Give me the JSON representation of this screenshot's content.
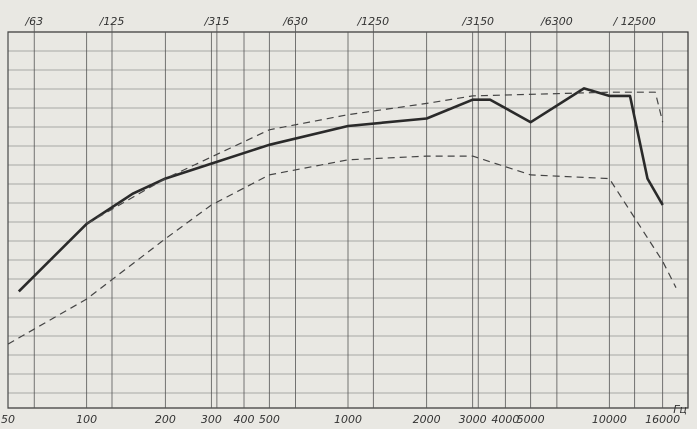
{
  "chart_data": {
    "type": "line",
    "log_x": true,
    "grid": true,
    "xlabel": "Гц",
    "xlim": [
      50,
      20000
    ],
    "ylim": [
      0,
      100
    ],
    "xticks": [
      50,
      100,
      200,
      300,
      400,
      500,
      1000,
      2000,
      3000,
      4000,
      5000,
      10000,
      16000
    ],
    "x2ticks": [
      {
        "value": 63,
        "label": "/63"
      },
      {
        "value": 125,
        "label": "/125"
      },
      {
        "value": 315,
        "label": "/315"
      },
      {
        "value": 630,
        "label": "/630"
      },
      {
        "value": 1250,
        "label": "/1250"
      },
      {
        "value": 3150,
        "label": "/3150"
      },
      {
        "value": 6300,
        "label": "/6300"
      },
      {
        "value": 12500,
        "label": "/ 12500"
      }
    ],
    "series": [
      {
        "color": "#2a2a2a",
        "dash": false,
        "x": [
          55,
          100,
          150,
          200,
          300,
          500,
          1000,
          2000,
          3000,
          3500,
          5000,
          8000,
          10000,
          12000,
          14000,
          16000
        ],
        "values": [
          31,
          49,
          57,
          61,
          65,
          70,
          75,
          77,
          82,
          82,
          76,
          85,
          83,
          83,
          61,
          54
        ]
      },
      {
        "color": "#444444",
        "dash": true,
        "x": [
          100,
          200,
          500,
          1000,
          2000,
          3000,
          10000,
          15000,
          16000
        ],
        "values": [
          49,
          61,
          74,
          78,
          81,
          83,
          84,
          84,
          76
        ]
      },
      {
        "color": "#444444",
        "dash": true,
        "x": [
          50,
          100,
          200,
          300,
          500,
          1000,
          2000,
          3000,
          5000,
          10000,
          16000,
          18000
        ],
        "values": [
          17,
          29,
          45,
          54,
          62,
          66,
          67,
          67,
          62,
          61,
          39,
          32
        ]
      }
    ]
  }
}
